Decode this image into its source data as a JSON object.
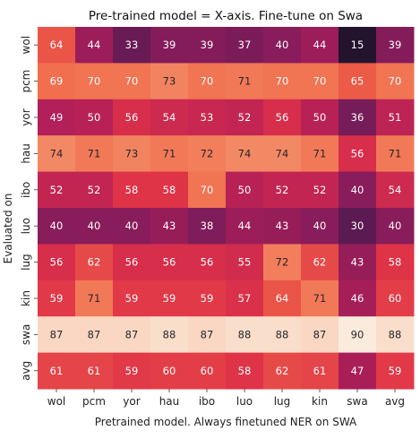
{
  "chart_data": {
    "type": "heatmap",
    "title": "Pre-trained model = X-axis. Fine-tune on Swa",
    "xlabel": "Pretrained model. Always finetuned NER on SWA",
    "ylabel": "Evaluated on",
    "x_categories": [
      "wol",
      "pcm",
      "yor",
      "hau",
      "ibo",
      "luo",
      "lug",
      "kin",
      "swa",
      "avg"
    ],
    "y_categories": [
      "wol",
      "pcm",
      "yor",
      "hau",
      "ibo",
      "luo",
      "lug",
      "kin",
      "swa",
      "avg"
    ],
    "values": [
      [
        64,
        44,
        33,
        39,
        39,
        37,
        40,
        44,
        15,
        39
      ],
      [
        69,
        70,
        70,
        73,
        70,
        71,
        70,
        70,
        65,
        70
      ],
      [
        49,
        50,
        56,
        54,
        53,
        52,
        56,
        50,
        36,
        51
      ],
      [
        74,
        71,
        73,
        71,
        72,
        74,
        74,
        71,
        56,
        71
      ],
      [
        52,
        52,
        58,
        58,
        70,
        50,
        52,
        52,
        40,
        54
      ],
      [
        40,
        40,
        40,
        43,
        38,
        44,
        43,
        40,
        30,
        40
      ],
      [
        56,
        62,
        56,
        56,
        56,
        55,
        72,
        62,
        43,
        58
      ],
      [
        59,
        71,
        59,
        59,
        59,
        57,
        64,
        71,
        46,
        60
      ],
      [
        87,
        87,
        87,
        88,
        87,
        88,
        88,
        87,
        90,
        88
      ],
      [
        61,
        61,
        59,
        60,
        60,
        58,
        62,
        61,
        47,
        59
      ]
    ],
    "value_range": [
      15,
      90
    ],
    "colormap": "rocket",
    "colorbar": false,
    "annotations": true
  }
}
